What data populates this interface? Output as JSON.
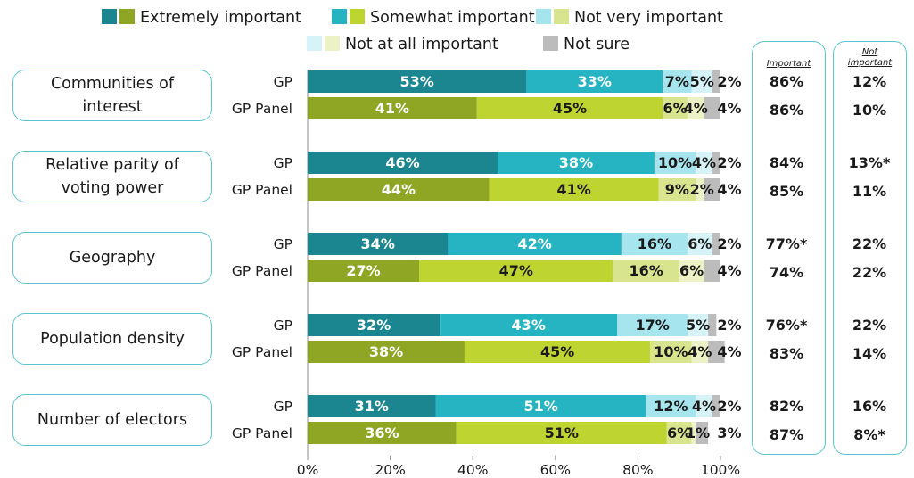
{
  "chart_data": {
    "type": "bar",
    "orientation": "horizontal-stacked",
    "legend": [
      {
        "label": "Extremely important",
        "colors": [
          "#1b8690",
          "#8fa625"
        ]
      },
      {
        "label": "Somewhat important",
        "colors": [
          "#26b4c2",
          "#bed431"
        ]
      },
      {
        "label": "Not very important",
        "colors": [
          "#a6e5ee",
          "#d9e48e"
        ]
      },
      {
        "label": "Not at all important",
        "colors": [
          "#d6f3f8",
          "#ecf2c6"
        ]
      },
      {
        "label": "Not sure",
        "colors": [
          "#bcbcbc"
        ]
      }
    ],
    "x_ticks": [
      "0%",
      "20%",
      "40%",
      "60%",
      "80%",
      "100%"
    ],
    "xlim": [
      0,
      100
    ],
    "summary_headers": [
      "Important",
      "Not important"
    ],
    "groups": [
      {
        "category": "Communities of interest",
        "rows": [
          {
            "label": "GP",
            "values": [
              53,
              33,
              7,
              5,
              2
            ],
            "labels": [
              "53%",
              "33%",
              "7%",
              "5%",
              "2%"
            ],
            "important": "86%",
            "not_important": "12%"
          },
          {
            "label": "GP Panel",
            "values": [
              41,
              45,
              6,
              4,
              4
            ],
            "labels": [
              "41%",
              "45%",
              "6%",
              "4%",
              "4%"
            ],
            "important": "86%",
            "not_important": "10%"
          }
        ]
      },
      {
        "category": "Relative parity of voting power",
        "rows": [
          {
            "label": "GP",
            "values": [
              46,
              38,
              10,
              4,
              2
            ],
            "labels": [
              "46%",
              "38%",
              "10%",
              "4%",
              "2%"
            ],
            "important": "84%",
            "not_important": "13%*"
          },
          {
            "label": "GP Panel",
            "values": [
              44,
              41,
              9,
              2,
              4
            ],
            "labels": [
              "44%",
              "41%",
              "9%",
              "2%",
              "4%"
            ],
            "important": "85%",
            "not_important": "11%"
          }
        ]
      },
      {
        "category": "Geography",
        "rows": [
          {
            "label": "GP",
            "values": [
              34,
              42,
              16,
              6,
              2
            ],
            "labels": [
              "34%",
              "42%",
              "16%",
              "6%",
              "2%"
            ],
            "important": "77%*",
            "not_important": "22%"
          },
          {
            "label": "GP Panel",
            "values": [
              27,
              47,
              16,
              6,
              4
            ],
            "labels": [
              "27%",
              "47%",
              "16%",
              "6%",
              "4%"
            ],
            "important": "74%",
            "not_important": "22%"
          }
        ]
      },
      {
        "category": "Population density",
        "rows": [
          {
            "label": "GP",
            "values": [
              32,
              43,
              17,
              5,
              2
            ],
            "labels": [
              "32%",
              "43%",
              "17%",
              "5%",
              "2%"
            ],
            "important": "76%*",
            "not_important": "22%"
          },
          {
            "label": "GP Panel",
            "values": [
              38,
              45,
              10,
              4,
              4
            ],
            "labels": [
              "38%",
              "45%",
              "10%",
              "4%",
              "4%"
            ],
            "important": "83%",
            "not_important": "14%"
          }
        ]
      },
      {
        "category": "Number of electors",
        "rows": [
          {
            "label": "GP",
            "values": [
              31,
              51,
              12,
              4,
              2
            ],
            "labels": [
              "31%",
              "51%",
              "12%",
              "4%",
              "2%"
            ],
            "important": "82%",
            "not_important": "16%"
          },
          {
            "label": "GP Panel",
            "values": [
              36,
              51,
              6,
              1,
              3
            ],
            "labels": [
              "36%",
              "51%",
              "6%",
              "1%",
              "3%"
            ],
            "important": "87%",
            "not_important": "8%*"
          }
        ]
      }
    ]
  }
}
